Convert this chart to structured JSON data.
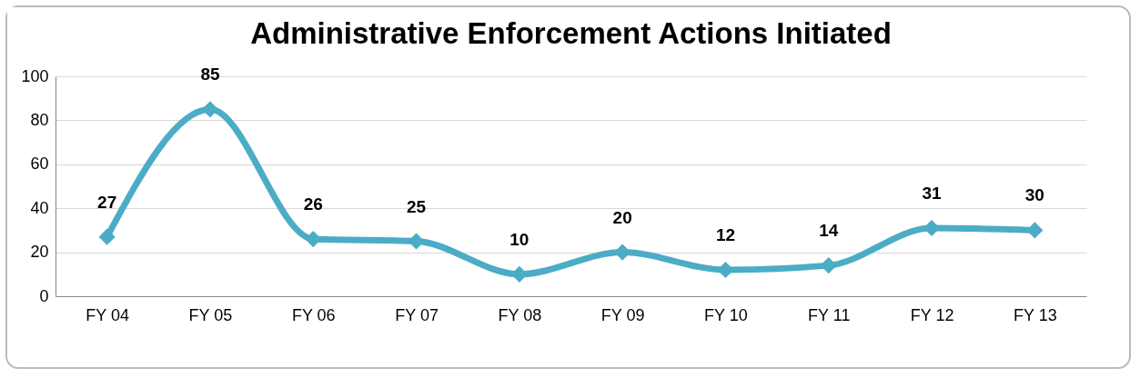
{
  "chart_data": {
    "type": "line",
    "title": "Administrative Enforcement Actions Initiated",
    "categories": [
      "FY 04",
      "FY 05",
      "FY 06",
      "FY 07",
      "FY 08",
      "FY 09",
      "FY 10",
      "FY 11",
      "FY 12",
      "FY 13"
    ],
    "values": [
      27,
      85,
      26,
      25,
      10,
      20,
      12,
      14,
      31,
      30
    ],
    "color": "#4bacc6",
    "ylim": [
      0,
      100
    ],
    "yticks": [
      0,
      20,
      40,
      60,
      80,
      100
    ],
    "grid": "y",
    "marker": "diamond",
    "data_labels": true
  }
}
